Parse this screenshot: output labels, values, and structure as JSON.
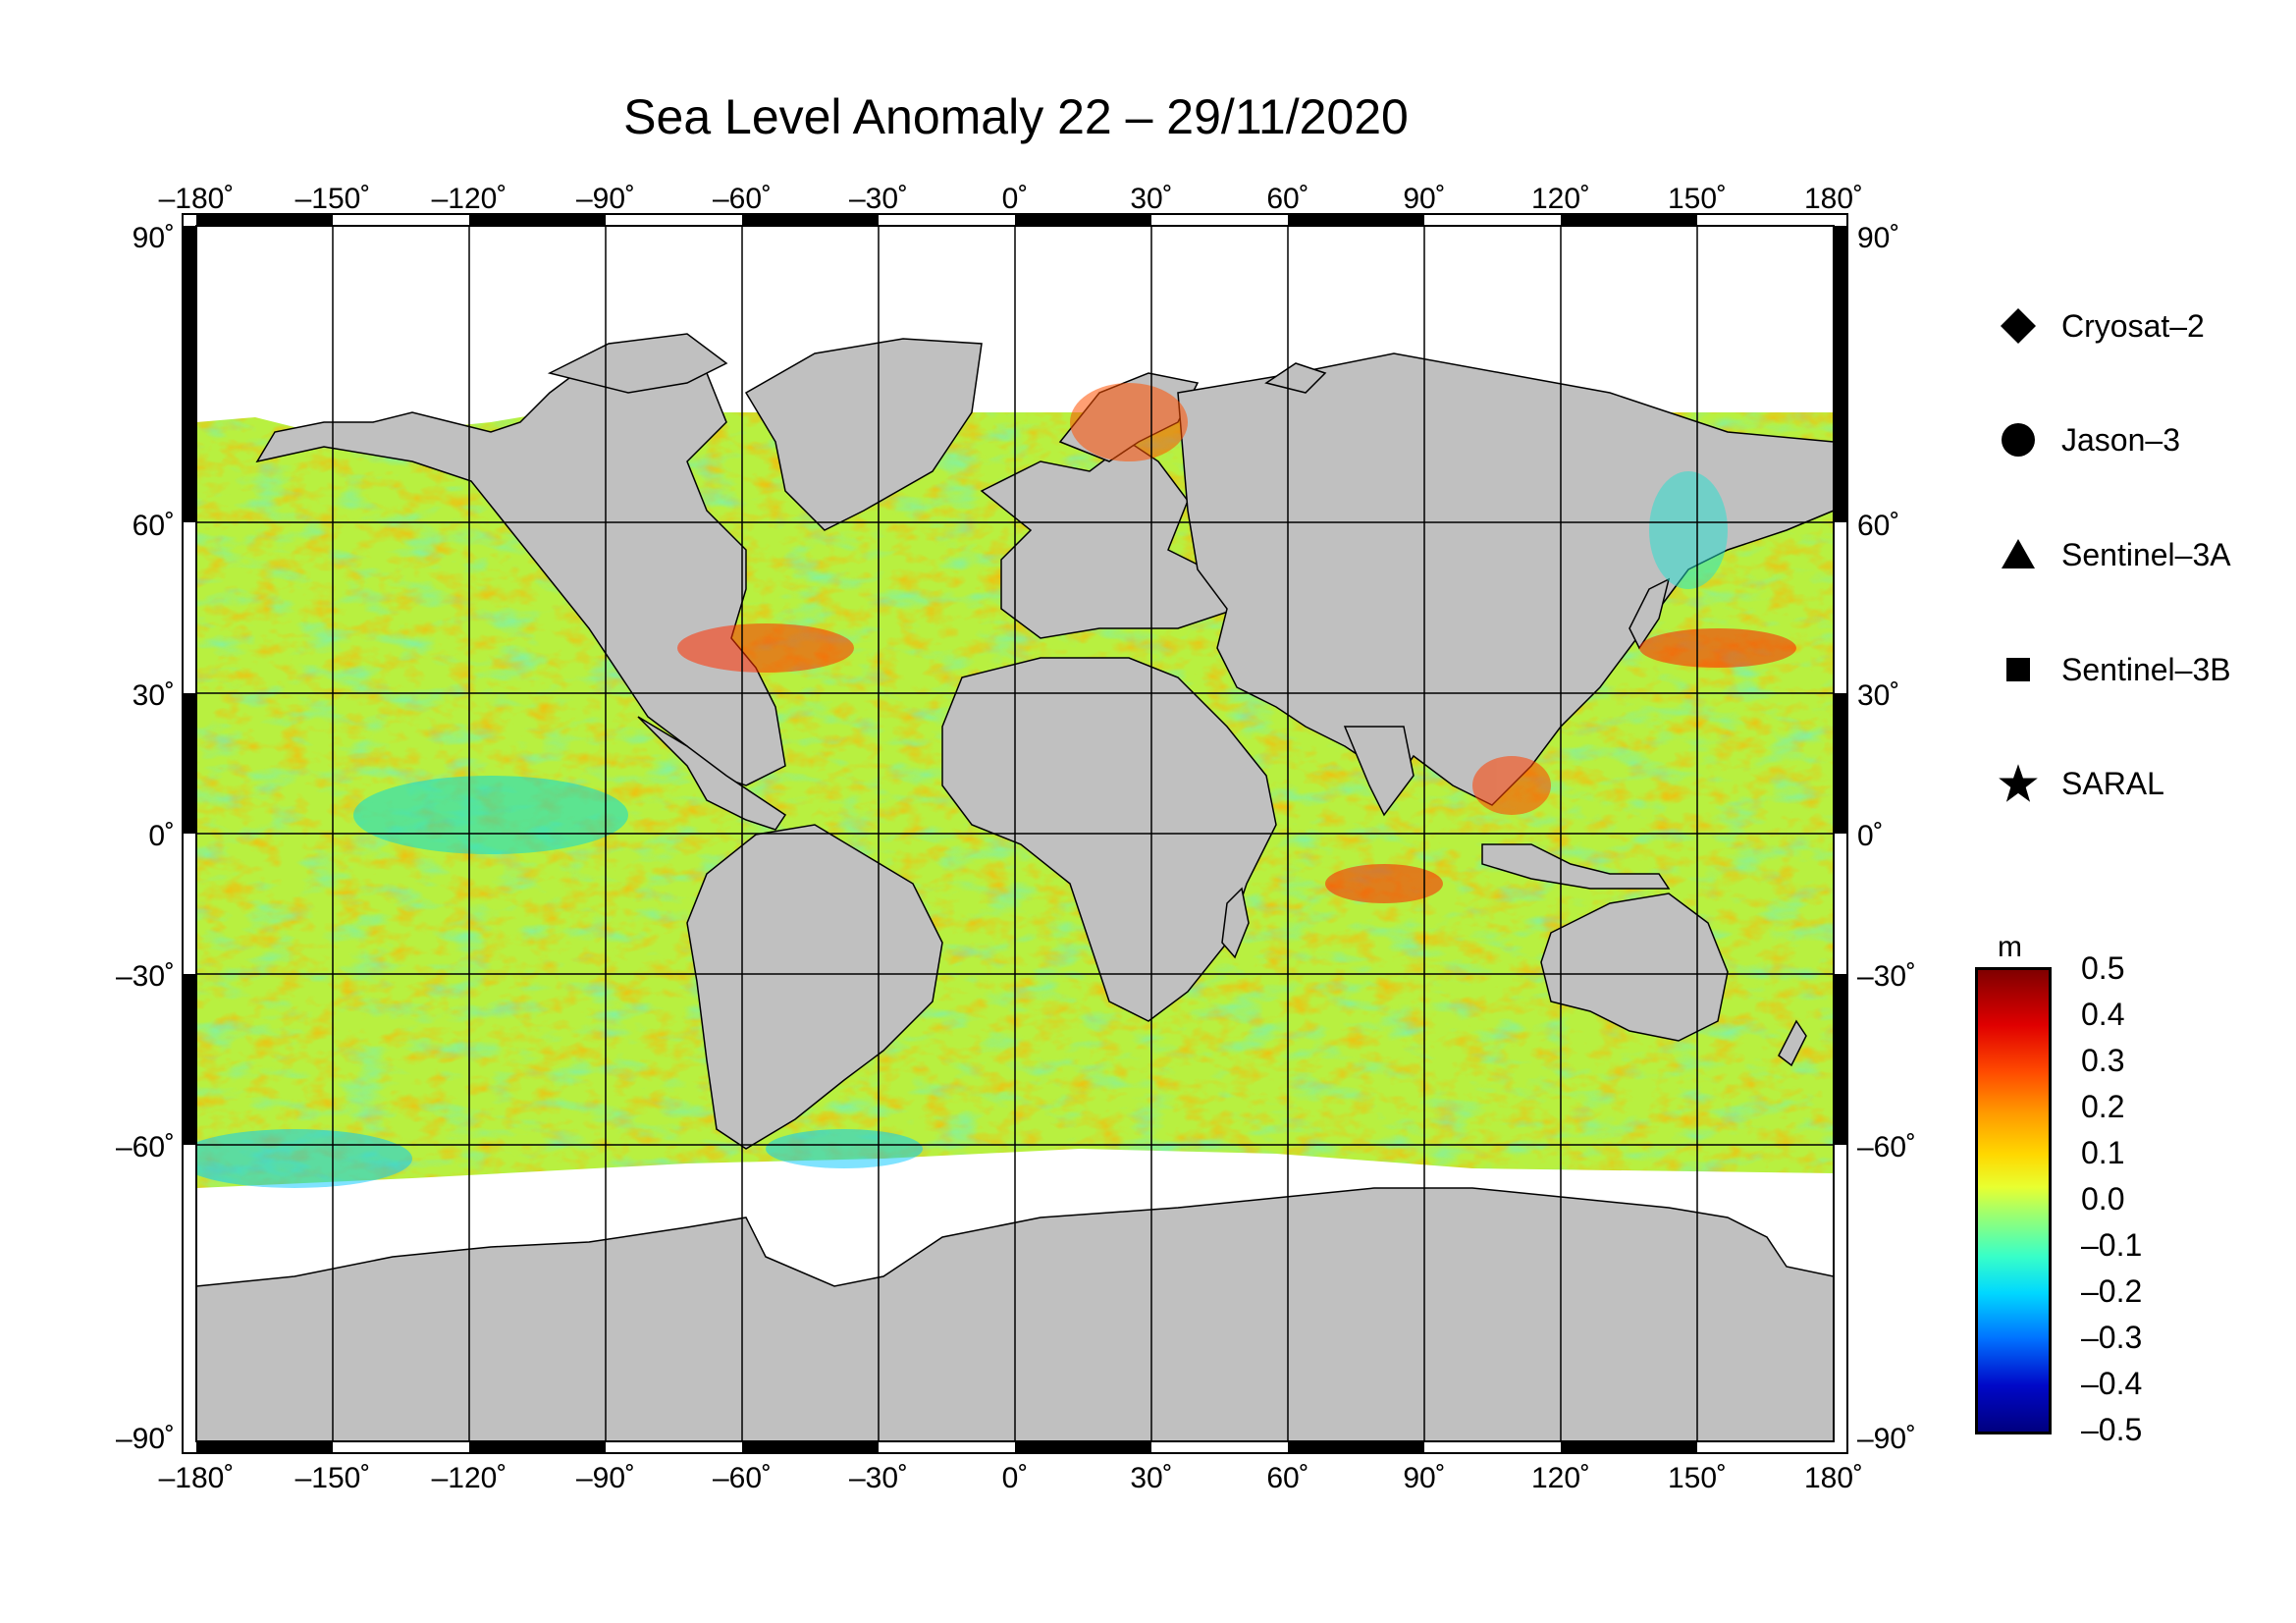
{
  "title": "Sea Level Anomaly 22 – 29/11/2020",
  "axes": {
    "lon_ticks": [
      "–180˚",
      "–150˚",
      "–120˚",
      "–90˚",
      "–60˚",
      "–30˚",
      "0˚",
      "30˚",
      "60˚",
      "90˚",
      "120˚",
      "150˚",
      "180˚"
    ],
    "lat_ticks": [
      "90˚",
      "60˚",
      "30˚",
      "0˚",
      "–30˚",
      "–60˚",
      "–90˚"
    ],
    "lon_range": [
      -180,
      180
    ],
    "lat_range": [
      -90,
      90
    ],
    "grid": true
  },
  "legend": {
    "items": [
      {
        "label": "Cryosat–2",
        "symbol": "diamond"
      },
      {
        "label": "Jason–3",
        "symbol": "circle"
      },
      {
        "label": "Sentinel–3A",
        "symbol": "triangle"
      },
      {
        "label": "Sentinel–3B",
        "symbol": "square"
      },
      {
        "label": "SARAL",
        "symbol": "star"
      }
    ]
  },
  "colorbar": {
    "unit": "m",
    "ticks": [
      "0.5",
      "0.4",
      "0.3",
      "0.2",
      "0.1",
      "0.0",
      "–0.1",
      "–0.2",
      "–0.3",
      "–0.4",
      "–0.5"
    ],
    "range": [
      -0.5,
      0.5
    ]
  },
  "colors": {
    "land": "#c0c0c0",
    "ice": "#ffffff",
    "ocean_base": "#b8f040",
    "frame": "#000000"
  }
}
